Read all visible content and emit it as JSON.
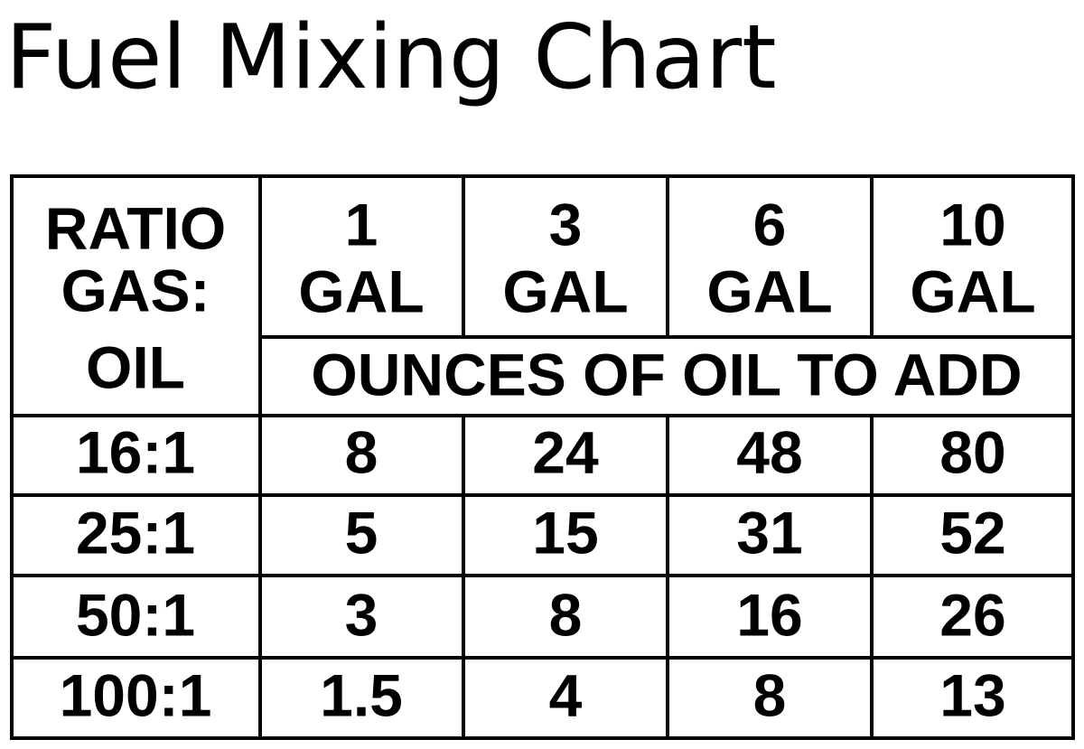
{
  "title": "Fuel Mixing Chart",
  "table": {
    "corner": [
      "RATIO",
      "GAS:",
      "OIL"
    ],
    "columns": [
      {
        "amount": "1",
        "unit": "GAL"
      },
      {
        "amount": "3",
        "unit": "GAL"
      },
      {
        "amount": "6",
        "unit": "GAL"
      },
      {
        "amount": "10",
        "unit": "GAL"
      }
    ],
    "subheader": "OUNCES OF OIL TO ADD",
    "rows": [
      [
        "16:1",
        8,
        24,
        48,
        80
      ],
      [
        "25:1",
        5,
        15,
        31,
        52
      ],
      [
        "50:1",
        3,
        8,
        16,
        26
      ],
      [
        "100:1",
        1.5,
        4,
        8,
        13
      ]
    ]
  }
}
